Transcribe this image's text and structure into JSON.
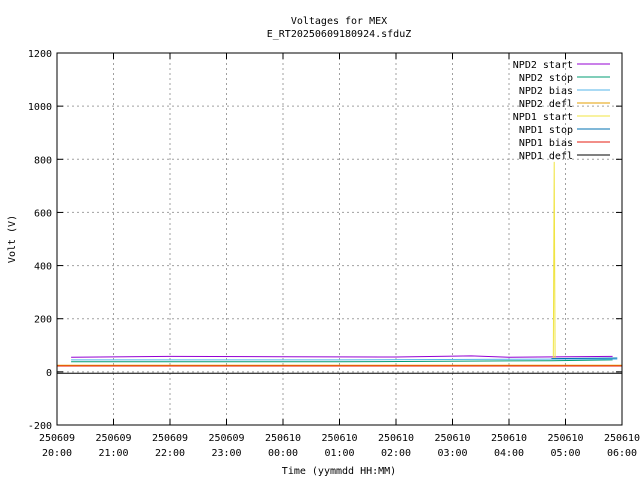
{
  "chart_data": {
    "type": "line",
    "title": "Voltages for MEX",
    "subtitle": "E_RT20250609180924.sfduZ",
    "xlabel": "Time (yymmdd HH:MM)",
    "ylabel": "Volt (V)",
    "ylim": [
      -200,
      1200
    ],
    "yticks": [
      -200,
      0,
      200,
      400,
      600,
      800,
      1000,
      1200
    ],
    "xlim": [
      "2025-06-09 20:00",
      "2025-06-10 06:00"
    ],
    "xticks": [
      {
        "date": "250609",
        "time": "20:00"
      },
      {
        "date": "250609",
        "time": "21:00"
      },
      {
        "date": "250609",
        "time": "22:00"
      },
      {
        "date": "250609",
        "time": "23:00"
      },
      {
        "date": "250610",
        "time": "00:00"
      },
      {
        "date": "250610",
        "time": "01:00"
      },
      {
        "date": "250610",
        "time": "02:00"
      },
      {
        "date": "250610",
        "time": "03:00"
      },
      {
        "date": "250610",
        "time": "04:00"
      },
      {
        "date": "250610",
        "time": "05:00"
      },
      {
        "date": "250610",
        "time": "06:00"
      }
    ],
    "grid": true,
    "legend_position": "top-right",
    "series": [
      {
        "name": "NPD2 start",
        "color": "#9400d3",
        "x": [
          "2025-06-09 20:15",
          "2025-06-09 22:00",
          "2025-06-10 00:00",
          "2025-06-10 02:00",
          "2025-06-10 03:20",
          "2025-06-10 04:00",
          "2025-06-10 05:50"
        ],
        "y": [
          55,
          58,
          57,
          56,
          60,
          55,
          58
        ]
      },
      {
        "name": "NPD2 stop",
        "color": "#009e73",
        "x": [
          "2025-06-09 20:15",
          "2025-06-10 01:00",
          "2025-06-10 04:45",
          "2025-06-10 05:50"
        ],
        "y": [
          38,
          38,
          42,
          45
        ]
      },
      {
        "name": "NPD2 bias",
        "color": "#56b4e9",
        "x": [
          "2025-06-09 20:15",
          "2025-06-10 01:00",
          "2025-06-10 04:45",
          "2025-06-10 05:55"
        ],
        "y": [
          45,
          45,
          48,
          48
        ]
      },
      {
        "name": "NPD2 defl",
        "color": "#e69f00",
        "x": [
          "2025-06-09 20:00",
          "2025-06-10 06:00"
        ],
        "y": [
          25,
          25
        ]
      },
      {
        "name": "NPD1 start",
        "color": "#f0e442",
        "x": [
          "2025-06-10 04:47",
          "2025-06-10 04:48",
          "2025-06-10 04:49"
        ],
        "y": [
          50,
          790,
          50
        ]
      },
      {
        "name": "NPD1 stop",
        "color": "#0072b2",
        "x": [
          "2025-06-10 04:45",
          "2025-06-10 05:55"
        ],
        "y": [
          50,
          52
        ]
      },
      {
        "name": "NPD1 bias",
        "color": "#e51e10",
        "x": [
          "2025-06-09 20:00",
          "2025-06-10 06:00"
        ],
        "y": [
          22,
          22
        ]
      },
      {
        "name": "NPD1 defl",
        "color": "#000000",
        "x": [
          "2025-06-09 20:00",
          "2025-06-10 06:00"
        ],
        "y": [
          -5,
          -5
        ]
      }
    ]
  }
}
